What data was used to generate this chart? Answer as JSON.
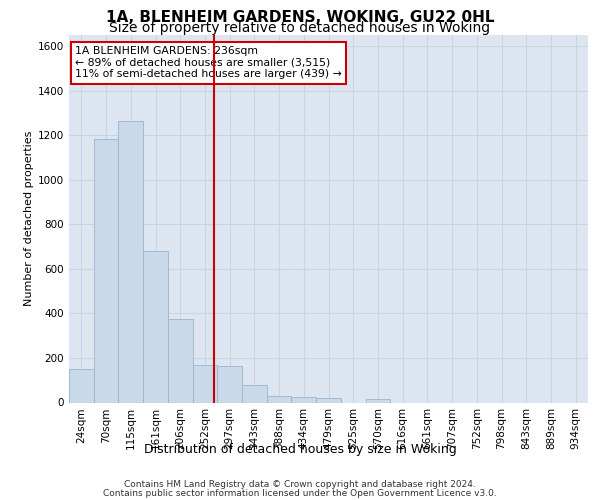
{
  "title1": "1A, BLENHEIM GARDENS, WOKING, GU22 0HL",
  "title2": "Size of property relative to detached houses in Woking",
  "xlabel": "Distribution of detached houses by size in Woking",
  "ylabel": "Number of detached properties",
  "footer1": "Contains HM Land Registry data © Crown copyright and database right 2024.",
  "footer2": "Contains public sector information licensed under the Open Government Licence v3.0.",
  "categories": [
    "24sqm",
    "70sqm",
    "115sqm",
    "161sqm",
    "206sqm",
    "252sqm",
    "297sqm",
    "343sqm",
    "388sqm",
    "434sqm",
    "479sqm",
    "525sqm",
    "570sqm",
    "616sqm",
    "661sqm",
    "707sqm",
    "752sqm",
    "798sqm",
    "843sqm",
    "889sqm",
    "934sqm"
  ],
  "values": [
    150,
    1185,
    1265,
    680,
    375,
    170,
    165,
    80,
    30,
    25,
    20,
    0,
    15,
    0,
    0,
    0,
    0,
    0,
    0,
    0,
    0
  ],
  "bar_color": "#c9d9ea",
  "bar_edge_color": "#9ab5cc",
  "vline_x_index": 5.35,
  "vline_color": "#cc0000",
  "annotation_text": "1A BLENHEIM GARDENS: 236sqm\n← 89% of detached houses are smaller (3,515)\n11% of semi-detached houses are larger (439) →",
  "annotation_box_facecolor": "#ffffff",
  "annotation_box_edgecolor": "#cc0000",
  "ylim": [
    0,
    1650
  ],
  "yticks": [
    0,
    200,
    400,
    600,
    800,
    1000,
    1200,
    1400,
    1600
  ],
  "grid_color": "#c8d4e4",
  "bg_color": "#dde6f0",
  "title1_fontsize": 11,
  "title2_fontsize": 10,
  "xlabel_fontsize": 9,
  "ylabel_fontsize": 8,
  "tick_fontsize": 7.5,
  "footer_fontsize": 6.5
}
